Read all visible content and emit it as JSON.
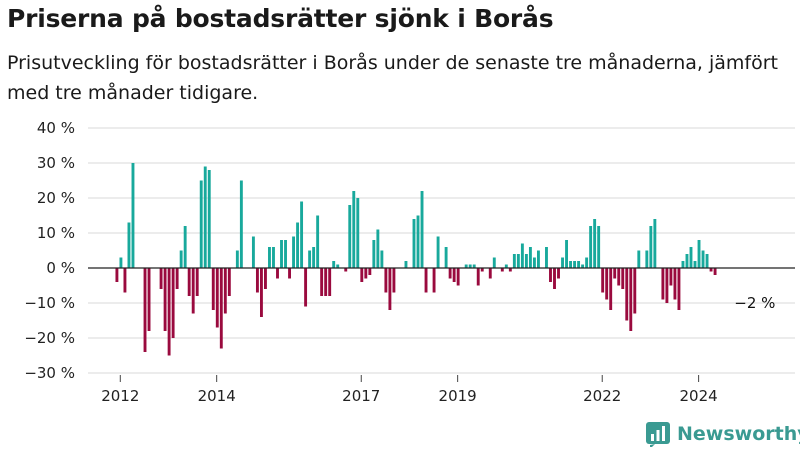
{
  "title": "Priserna på bostadsrätter sjönk i Borås",
  "subtitle": "Prisutveckling för bostadsrätter i Borås under de senaste tre månaderna, jämfört med tre månader tidigare.",
  "brand": {
    "name": "Newsworthy",
    "icon": "newsworthy-logo-icon"
  },
  "colors": {
    "positive": "#18a99c",
    "negative": "#9a0a3e",
    "grid": "#d8d8d8",
    "zero": "#222222",
    "brand": "#3a9a92"
  },
  "chart_data": {
    "type": "bar",
    "title": "Priserna på bostadsrätter sjönk i Borås",
    "ylim": [
      -30,
      40
    ],
    "yticks": [
      40,
      30,
      20,
      10,
      0,
      -10,
      -20,
      -30
    ],
    "ytick_labels": [
      "40 %",
      "30 %",
      "20 %",
      "10 %",
      "0 %",
      "−10 %",
      "−20 %",
      "−30 %"
    ],
    "xlim": [
      2011.33,
      2026.0
    ],
    "xtick_labels": [
      {
        "label": "2012",
        "x": 2012.0
      },
      {
        "label": "2014",
        "x": 2014.0
      },
      {
        "label": "2017",
        "x": 2017.0
      },
      {
        "label": "2019",
        "x": 2019.0
      },
      {
        "label": "2022",
        "x": 2022.0
      },
      {
        "label": "2024",
        "x": 2024.0
      }
    ],
    "grid": true,
    "annotation": {
      "text": "−2 %",
      "x": 2025.25,
      "y": -2
    },
    "x_start": 2011.93,
    "x_step": 0.0833,
    "values": [
      -4,
      3,
      -7,
      13,
      30,
      0,
      0,
      -24,
      -18,
      0,
      0,
      -6,
      -18,
      -25,
      -20,
      -6,
      5,
      12,
      -8,
      -13,
      -8,
      25,
      29,
      28,
      -12,
      -17,
      -23,
      -13,
      -8,
      0,
      5,
      25,
      0,
      0,
      9,
      -7,
      -14,
      -6,
      6,
      6,
      -3,
      8,
      8,
      -3,
      9,
      13,
      19,
      -11,
      5,
      6,
      15,
      -8,
      -8,
      -8,
      2,
      1,
      0,
      -1,
      18,
      22,
      20,
      -4,
      -3,
      -2,
      8,
      11,
      5,
      -7,
      -12,
      -7,
      0,
      0,
      2,
      0,
      14,
      15,
      22,
      -7,
      0,
      -7,
      9,
      0,
      6,
      -3,
      -4,
      -5,
      0,
      1,
      1,
      1,
      -5,
      -1,
      0,
      -3,
      3,
      0,
      -1,
      1,
      -1,
      4,
      4,
      7,
      4,
      6,
      3,
      5,
      0,
      6,
      -4,
      -6,
      -3,
      3,
      8,
      2,
      2,
      2,
      1,
      3,
      12,
      14,
      12,
      -7,
      -9,
      -12,
      -3,
      -5,
      -6,
      -15,
      -18,
      -13,
      5,
      0,
      5,
      12,
      14,
      0,
      -9,
      -10,
      -5,
      -9,
      -12,
      2,
      4,
      6,
      2,
      8,
      5,
      4,
      -1,
      -2
    ]
  }
}
